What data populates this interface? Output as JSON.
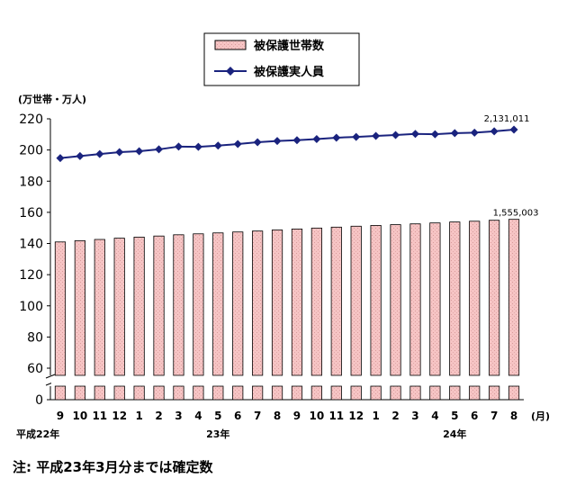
{
  "chart_data": {
    "type": "bar+line",
    "unit_label": "(万世帯・万人)",
    "month_suffix": "(月)",
    "categories": [
      "9",
      "10",
      "11",
      "12",
      "1",
      "2",
      "3",
      "4",
      "5",
      "6",
      "7",
      "8",
      "9",
      "10",
      "11",
      "12",
      "1",
      "2",
      "3",
      "4",
      "5",
      "6",
      "7",
      "8"
    ],
    "year_labels": [
      {
        "label": "平成22年",
        "index": 0
      },
      {
        "label": "23年",
        "index": 8
      },
      {
        "label": "24年",
        "index": 20
      }
    ],
    "y_ticks": [
      "0",
      "60",
      "80",
      "100",
      "120",
      "140",
      "160",
      "180",
      "200",
      "220"
    ],
    "y_broken_axis": true,
    "series": [
      {
        "name": "被保護世帯数",
        "kind": "bar",
        "color": "#f4b6b6",
        "values": [
          141.0,
          141.8,
          142.6,
          143.4,
          144.1,
          144.8,
          145.6,
          146.2,
          146.8,
          147.4,
          148.0,
          148.7,
          149.3,
          149.9,
          150.5,
          151.1,
          151.6,
          152.1,
          152.6,
          153.2,
          153.8,
          154.3,
          154.9,
          155.5
        ],
        "end_label": "1,555,003"
      },
      {
        "name": "被保護実人員",
        "kind": "line",
        "color": "#1a237e",
        "values": [
          194.8,
          196.1,
          197.4,
          198.6,
          199.2,
          200.4,
          202.2,
          202.0,
          202.8,
          203.8,
          205.0,
          205.8,
          206.3,
          207.0,
          207.9,
          208.4,
          209.0,
          209.6,
          210.3,
          210.1,
          210.8,
          211.1,
          212.0,
          213.1
        ],
        "end_label": "2,131,011"
      }
    ]
  },
  "note": "注: 平成23年3月分までは確定数"
}
